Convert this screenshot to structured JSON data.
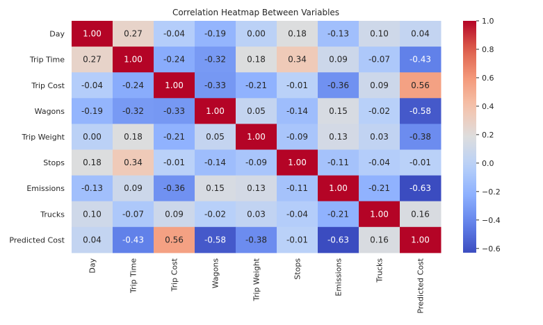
{
  "chart_data": {
    "type": "heatmap",
    "title": "Correlation Heatmap Between Variables",
    "rows": [
      "Day",
      "Trip Time",
      "Trip Cost",
      "Wagons",
      "Trip Weight",
      "Stops",
      "Emissions",
      "Trucks",
      "Predicted Cost"
    ],
    "cols": [
      "Day",
      "Trip Time",
      "Trip Cost",
      "Wagons",
      "Trip Weight",
      "Stops",
      "Emissions",
      "Trucks",
      "Predicted Cost"
    ],
    "values": [
      [
        1.0,
        0.27,
        -0.04,
        -0.19,
        0.0,
        0.18,
        -0.13,
        0.1,
        0.04
      ],
      [
        0.27,
        1.0,
        -0.24,
        -0.32,
        0.18,
        0.34,
        0.09,
        -0.07,
        -0.43
      ],
      [
        -0.04,
        -0.24,
        1.0,
        -0.33,
        -0.21,
        -0.01,
        -0.36,
        0.09,
        0.56
      ],
      [
        -0.19,
        -0.32,
        -0.33,
        1.0,
        0.05,
        -0.14,
        0.15,
        -0.02,
        -0.58
      ],
      [
        0.0,
        0.18,
        -0.21,
        0.05,
        1.0,
        -0.09,
        0.13,
        0.03,
        -0.38
      ],
      [
        0.18,
        0.34,
        -0.01,
        -0.14,
        -0.09,
        1.0,
        -0.11,
        -0.04,
        -0.01
      ],
      [
        -0.13,
        0.09,
        -0.36,
        0.15,
        0.13,
        -0.11,
        1.0,
        -0.21,
        -0.63
      ],
      [
        0.1,
        -0.07,
        0.09,
        -0.02,
        0.03,
        -0.04,
        -0.21,
        1.0,
        0.16
      ],
      [
        0.04,
        -0.43,
        0.56,
        -0.58,
        -0.38,
        -0.01,
        -0.63,
        0.16,
        1.0
      ]
    ],
    "value_format": "0.00",
    "colormap": "coolwarm",
    "vmin": -0.63,
    "vmax": 1.0,
    "colorbar_ticks": [
      1.0,
      0.8,
      0.6,
      0.4,
      0.2,
      0.0,
      -0.2,
      -0.4,
      -0.6
    ],
    "colorbar_tick_labels": [
      "1.0",
      "0.8",
      "0.6",
      "0.4",
      "0.2",
      "0.0",
      "−0.2",
      "−0.4",
      "−0.6"
    ],
    "colorbar_position": "right",
    "grid": false
  }
}
